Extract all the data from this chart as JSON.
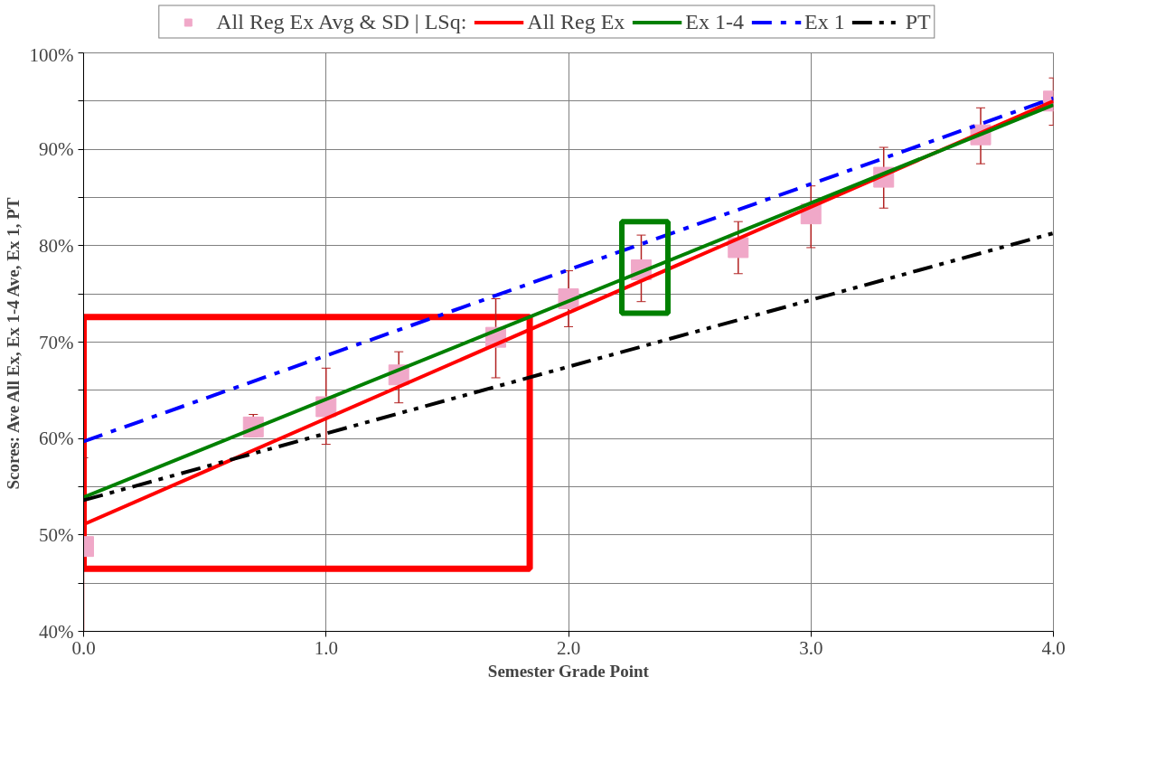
{
  "chart_data": {
    "type": "scatter",
    "xlabel": "Semester Grade Point",
    "ylabel": "Scores: Ave All Ex, Ex 1-4 Ave, Ex 1, PT",
    "xlim": [
      0,
      4
    ],
    "xticks": [
      {
        "value": 0,
        "label": "0.0"
      },
      {
        "value": 1,
        "label": "1.0"
      },
      {
        "value": 2,
        "label": "2.0"
      },
      {
        "value": 3,
        "label": "3.0"
      },
      {
        "value": 4,
        "label": "4.0"
      }
    ],
    "ylim": [
      40,
      100
    ],
    "yticks": [
      {
        "value": 40,
        "label": "40%"
      },
      {
        "value": 45,
        "label": null
      },
      {
        "value": 50,
        "label": "50%"
      },
      {
        "value": 55,
        "label": null
      },
      {
        "value": 60,
        "label": "60%"
      },
      {
        "value": 65,
        "label": null
      },
      {
        "value": 70,
        "label": "70%"
      },
      {
        "value": 75,
        "label": null
      },
      {
        "value": 80,
        "label": "80%"
      },
      {
        "value": 85,
        "label": null
      },
      {
        "value": 90,
        "label": "90%"
      },
      {
        "value": 95,
        "label": null
      },
      {
        "value": 100,
        "label": "100%"
      }
    ],
    "grid": true,
    "legend": "top",
    "series": [
      {
        "name": "All Reg Ex Avg & SD | LSq:",
        "marker": "square",
        "color": "#f0a8c8",
        "x": [
          0.0,
          0.7,
          1.0,
          1.3,
          1.7,
          2.0,
          2.3,
          2.7,
          3.0,
          3.3,
          3.7,
          4.0
        ],
        "values": [
          48.8,
          61.2,
          63.3,
          66.6,
          70.5,
          74.5,
          77.5,
          79.8,
          83.3,
          87.1,
          91.5,
          95.0
        ],
        "errors": [
          [
            40.0,
            58.0
          ],
          [
            60.2,
            62.5
          ],
          [
            59.4,
            67.3
          ],
          [
            63.7,
            69.0
          ],
          [
            66.3,
            74.5
          ],
          [
            71.6,
            77.4
          ],
          [
            74.2,
            81.1
          ],
          [
            77.1,
            82.5
          ],
          [
            79.8,
            86.2
          ],
          [
            83.9,
            90.2
          ],
          [
            88.5,
            94.3
          ],
          [
            92.5,
            97.4
          ]
        ]
      },
      {
        "name": "All Reg Ex",
        "type": "line",
        "line_style": "solid",
        "color": "#ff0000",
        "x": [
          0,
          4
        ],
        "values": [
          51.1,
          95.0
        ]
      },
      {
        "name": "Ex 1-4",
        "type": "line",
        "line_style": "solid",
        "color": "#008000",
        "x": [
          0,
          4
        ],
        "values": [
          53.9,
          94.6
        ]
      },
      {
        "name": "Ex 1",
        "type": "line",
        "line_style": "dashdot",
        "color": "#0000ff",
        "x": [
          0,
          4
        ],
        "values": [
          59.7,
          95.3
        ]
      },
      {
        "name": "PT",
        "type": "line",
        "line_style": "dashdotdot",
        "color": "#000000",
        "x": [
          0,
          4
        ],
        "values": [
          53.6,
          81.3
        ]
      }
    ]
  }
}
